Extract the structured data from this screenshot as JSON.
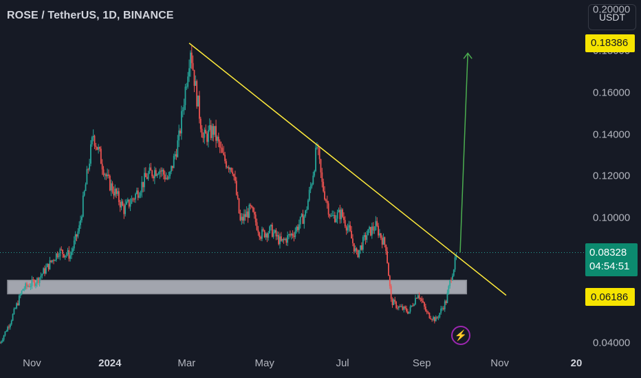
{
  "header": {
    "title": "ROSE / TetherUS, 1D, BINANCE",
    "currency_button": "USDT"
  },
  "price_tags": {
    "target": "0.18386",
    "current": "0.08328",
    "countdown": "04:54:51",
    "support": "0.06186"
  },
  "icons": {
    "flash": "lightning-icon"
  },
  "colors": {
    "background": "#161a25",
    "up": "#26a69a",
    "down": "#ef5350",
    "trendline": "#ffeb3b",
    "projection": "#4caf50",
    "zone": "#d1d4dc",
    "tag_yellow": "#f6e400",
    "tag_green": "#0c8a6f"
  },
  "chart_data": {
    "type": "candlestick",
    "title": "ROSE / TetherUS, 1D, BINANCE",
    "y_ticks": [
      "0.20000",
      "0.18000",
      "0.16000",
      "0.14000",
      "0.12000",
      "0.10000",
      "0.04000"
    ],
    "x_ticks": [
      {
        "label": "Nov",
        "date": "2023-11-01",
        "bold": false
      },
      {
        "label": "2024",
        "date": "2024-01-01",
        "bold": true
      },
      {
        "label": "Mar",
        "date": "2024-03-01",
        "bold": false
      },
      {
        "label": "May",
        "date": "2024-05-01",
        "bold": false
      },
      {
        "label": "Jul",
        "date": "2024-07-01",
        "bold": false
      },
      {
        "label": "Sep",
        "date": "2024-09-01",
        "bold": false
      },
      {
        "label": "Nov",
        "date": "2024-11-01",
        "bold": false
      },
      {
        "label": "20",
        "date": "2025-01-01",
        "bold": true
      }
    ],
    "ylim": [
      0.033,
      0.2045
    ],
    "xlim": [
      "2023-10-07",
      "2025-01-01"
    ],
    "price_path": [
      [
        "2023-10-07",
        0.04
      ],
      [
        "2023-10-15",
        0.05
      ],
      [
        "2023-10-25",
        0.066
      ],
      [
        "2023-11-05",
        0.07
      ],
      [
        "2023-11-15",
        0.078
      ],
      [
        "2023-11-22",
        0.084
      ],
      [
        "2023-12-01",
        0.082
      ],
      [
        "2023-12-08",
        0.095
      ],
      [
        "2023-12-14",
        0.12
      ],
      [
        "2023-12-19",
        0.14
      ],
      [
        "2023-12-24",
        0.13
      ],
      [
        "2023-12-30",
        0.118
      ],
      [
        "2024-01-05",
        0.112
      ],
      [
        "2024-01-12",
        0.104
      ],
      [
        "2024-01-20",
        0.11
      ],
      [
        "2024-01-30",
        0.12
      ],
      [
        "2024-02-08",
        0.124
      ],
      [
        "2024-02-16",
        0.118
      ],
      [
        "2024-02-24",
        0.138
      ],
      [
        "2024-02-29",
        0.162
      ],
      [
        "2024-03-04",
        0.182
      ],
      [
        "2024-03-08",
        0.162
      ],
      [
        "2024-03-14",
        0.138
      ],
      [
        "2024-03-22",
        0.142
      ],
      [
        "2024-03-30",
        0.128
      ],
      [
        "2024-04-06",
        0.124
      ],
      [
        "2024-04-12",
        0.098
      ],
      [
        "2024-04-20",
        0.104
      ],
      [
        "2024-04-28",
        0.092
      ],
      [
        "2024-05-06",
        0.094
      ],
      [
        "2024-05-14",
        0.088
      ],
      [
        "2024-05-24",
        0.093
      ],
      [
        "2024-06-02",
        0.102
      ],
      [
        "2024-06-07",
        0.118
      ],
      [
        "2024-06-11",
        0.134
      ],
      [
        "2024-06-15",
        0.116
      ],
      [
        "2024-06-22",
        0.1
      ],
      [
        "2024-06-30",
        0.102
      ],
      [
        "2024-07-06",
        0.094
      ],
      [
        "2024-07-12",
        0.082
      ],
      [
        "2024-07-20",
        0.092
      ],
      [
        "2024-07-27",
        0.096
      ],
      [
        "2024-08-04",
        0.086
      ],
      [
        "2024-08-08",
        0.06
      ],
      [
        "2024-08-14",
        0.057
      ],
      [
        "2024-08-22",
        0.055
      ],
      [
        "2024-08-29",
        0.064
      ],
      [
        "2024-09-05",
        0.054
      ],
      [
        "2024-09-12",
        0.051
      ],
      [
        "2024-09-20",
        0.06
      ],
      [
        "2024-09-24",
        0.072
      ],
      [
        "2024-09-29",
        0.083
      ]
    ],
    "trendline": {
      "from": [
        "2024-03-03",
        0.1838
      ],
      "to": [
        "2024-11-06",
        0.0628
      ]
    },
    "projection": {
      "from": [
        "2024-10-01",
        0.0833
      ],
      "to": [
        "2024-10-07",
        0.179
      ]
    },
    "support_zone": {
      "from": "2023-10-07",
      "to": "2024-10-06",
      "y_low": 0.0635,
      "y_high": 0.07
    },
    "current_price": 0.08328
  }
}
